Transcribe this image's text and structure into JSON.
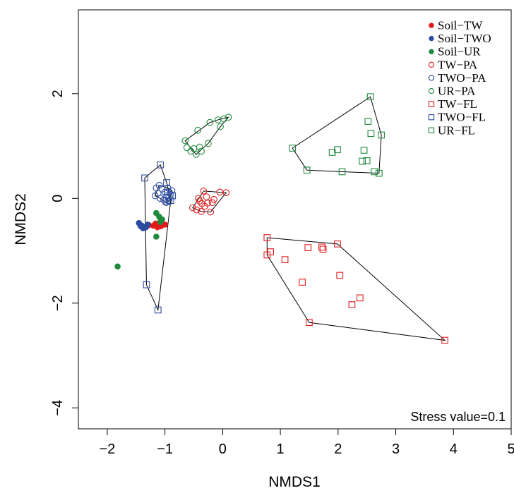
{
  "chart_data": {
    "type": "scatter",
    "xlabel": "NMDS1",
    "ylabel": "NMDS2",
    "xlim": [
      -2.5,
      5
    ],
    "ylim": [
      -4.4,
      3.6
    ],
    "x_ticks": [
      -2,
      -1,
      0,
      1,
      2,
      3,
      4,
      5
    ],
    "y_ticks": [
      -4,
      -2,
      0,
      2
    ],
    "x_tick_labels": [
      "−2",
      "−1",
      "0",
      "1",
      "2",
      "3",
      "4",
      "5"
    ],
    "y_tick_labels": [
      "−4",
      "−2",
      "0",
      "2"
    ],
    "annotation": "Stress value=0.1",
    "legend_position": "top-right",
    "series": [
      {
        "name": "Soil−TW",
        "color": "#e31a1c",
        "marker": "filled-circle",
        "points": [
          [
            -1.28,
            -0.51
          ],
          [
            -1.2,
            -0.52
          ],
          [
            -1.13,
            -0.55
          ],
          [
            -1.07,
            -0.53
          ],
          [
            -1.0,
            -0.5
          ],
          [
            -1.16,
            -0.48
          ]
        ]
      },
      {
        "name": "Soil−TWO",
        "color": "#2b4ba0",
        "marker": "filled-circle",
        "points": [
          [
            -1.45,
            -0.47
          ],
          [
            -1.4,
            -0.52
          ],
          [
            -1.35,
            -0.56
          ],
          [
            -1.3,
            -0.5
          ],
          [
            -1.38,
            -0.57
          ],
          [
            -1.42,
            -0.53
          ],
          [
            -1.33,
            -0.55
          ]
        ]
      },
      {
        "name": "Soil−UR",
        "color": "#1f8a3d",
        "marker": "filled-circle",
        "points": [
          [
            -1.82,
            -1.3
          ],
          [
            -1.15,
            -0.73
          ],
          [
            -1.15,
            -0.28
          ],
          [
            -1.1,
            -0.35
          ],
          [
            -1.05,
            -0.4
          ],
          [
            -1.08,
            -0.45
          ]
        ]
      },
      {
        "name": "TW−PA",
        "color": "#e31a1c",
        "marker": "open-circle",
        "points": [
          [
            -0.52,
            -0.18
          ],
          [
            -0.45,
            -0.22
          ],
          [
            -0.37,
            -0.25
          ],
          [
            -0.4,
            -0.05
          ],
          [
            -0.33,
            0.14
          ],
          [
            -0.28,
            0.03
          ],
          [
            -0.26,
            -0.09
          ],
          [
            -0.21,
            -0.26
          ],
          [
            -0.18,
            -0.08
          ],
          [
            -0.15,
            -0.02
          ],
          [
            -0.05,
            0.12
          ],
          [
            0.06,
            0.11
          ],
          [
            -0.31,
            -0.15
          ],
          [
            -0.42,
            0.0
          ],
          [
            -0.36,
            -0.1
          ]
        ],
        "hull": [
          [
            -0.52,
            -0.18
          ],
          [
            -0.37,
            -0.25
          ],
          [
            -0.21,
            -0.26
          ],
          [
            0.06,
            0.11
          ],
          [
            -0.33,
            0.14
          ]
        ]
      },
      {
        "name": "TWO−PA",
        "color": "#2b4ba0",
        "marker": "open-circle",
        "points": [
          [
            -1.15,
            0.2
          ],
          [
            -1.12,
            0.1
          ],
          [
            -1.08,
            0.0
          ],
          [
            -1.05,
            0.18
          ],
          [
            -1.02,
            -0.03
          ],
          [
            -1.0,
            0.12
          ],
          [
            -0.97,
            0.05
          ],
          [
            -0.95,
            0.2
          ],
          [
            -0.93,
            -0.06
          ],
          [
            -0.9,
            0.08
          ],
          [
            -0.88,
            0.15
          ],
          [
            -1.1,
            0.25
          ],
          [
            -1.17,
            0.05
          ],
          [
            -0.98,
            -0.08
          ]
        ],
        "hull": [
          [
            -1.17,
            0.05
          ],
          [
            -1.1,
            0.25
          ],
          [
            -0.95,
            0.2
          ],
          [
            -0.88,
            0.15
          ],
          [
            -0.93,
            -0.06
          ],
          [
            -0.98,
            -0.08
          ],
          [
            -1.08,
            0.0
          ]
        ]
      },
      {
        "name": "UR−PA",
        "color": "#1f8a3d",
        "marker": "open-circle",
        "points": [
          [
            -0.65,
            1.1
          ],
          [
            -0.62,
            0.97
          ],
          [
            -0.55,
            0.9
          ],
          [
            -0.5,
            0.95
          ],
          [
            -0.46,
            0.84
          ],
          [
            -0.43,
            1.3
          ],
          [
            -0.4,
            0.98
          ],
          [
            -0.37,
            0.9
          ],
          [
            -0.25,
            1.05
          ],
          [
            -0.22,
            1.45
          ],
          [
            -0.08,
            1.5
          ],
          [
            -0.04,
            1.37
          ],
          [
            0.02,
            1.52
          ],
          [
            0.1,
            1.55
          ]
        ],
        "hull": [
          [
            -0.65,
            1.1
          ],
          [
            -0.46,
            0.84
          ],
          [
            -0.25,
            1.05
          ],
          [
            -0.04,
            1.37
          ],
          [
            0.1,
            1.55
          ],
          [
            -0.08,
            1.5
          ],
          [
            -0.22,
            1.45
          ]
        ]
      },
      {
        "name": "TW−FL",
        "color": "#e31a1c",
        "marker": "open-square",
        "points": [
          [
            0.77,
            -0.75
          ],
          [
            0.77,
            -1.08
          ],
          [
            0.83,
            -1.02
          ],
          [
            1.08,
            -1.17
          ],
          [
            1.38,
            -1.6
          ],
          [
            1.48,
            -0.94
          ],
          [
            1.5,
            -2.37
          ],
          [
            1.72,
            -0.93
          ],
          [
            1.74,
            -0.97
          ],
          [
            1.99,
            -0.87
          ],
          [
            2.03,
            -1.47
          ],
          [
            2.24,
            -2.03
          ],
          [
            2.38,
            -1.9
          ],
          [
            3.85,
            -2.71
          ]
        ],
        "hull": [
          [
            0.77,
            -0.75
          ],
          [
            0.77,
            -1.08
          ],
          [
            1.5,
            -2.37
          ],
          [
            3.85,
            -2.71
          ],
          [
            1.99,
            -0.87
          ]
        ]
      },
      {
        "name": "TWO−FL",
        "color": "#2b4ba0",
        "marker": "open-square",
        "points": [
          [
            -1.35,
            0.39
          ],
          [
            -1.32,
            -1.65
          ],
          [
            -1.12,
            -2.13
          ],
          [
            -1.08,
            0.64
          ],
          [
            -0.97,
            0.3
          ],
          [
            -0.98,
            -0.05
          ],
          [
            -0.93,
            0.02
          ],
          [
            -0.9,
            -0.04
          ],
          [
            -0.95,
            0.12
          ],
          [
            -0.87,
            0.05
          ]
        ],
        "hull": [
          [
            -1.35,
            0.39
          ],
          [
            -1.08,
            0.64
          ],
          [
            -0.97,
            0.3
          ],
          [
            -0.9,
            -0.04
          ],
          [
            -1.12,
            -2.13
          ],
          [
            -1.32,
            -1.65
          ]
        ]
      },
      {
        "name": "UR−FL",
        "color": "#1f8a3d",
        "marker": "open-square",
        "points": [
          [
            1.21,
            0.96
          ],
          [
            1.46,
            0.54
          ],
          [
            1.9,
            0.88
          ],
          [
            1.99,
            0.93
          ],
          [
            2.07,
            0.51
          ],
          [
            2.42,
            0.71
          ],
          [
            2.45,
            0.92
          ],
          [
            2.5,
            0.72
          ],
          [
            2.52,
            1.47
          ],
          [
            2.56,
            1.94
          ],
          [
            2.57,
            1.24
          ],
          [
            2.63,
            0.51
          ],
          [
            2.71,
            0.48
          ],
          [
            2.75,
            1.21
          ]
        ],
        "hull": [
          [
            1.21,
            0.96
          ],
          [
            1.46,
            0.54
          ],
          [
            2.71,
            0.48
          ],
          [
            2.75,
            1.21
          ],
          [
            2.56,
            1.94
          ]
        ]
      }
    ]
  }
}
